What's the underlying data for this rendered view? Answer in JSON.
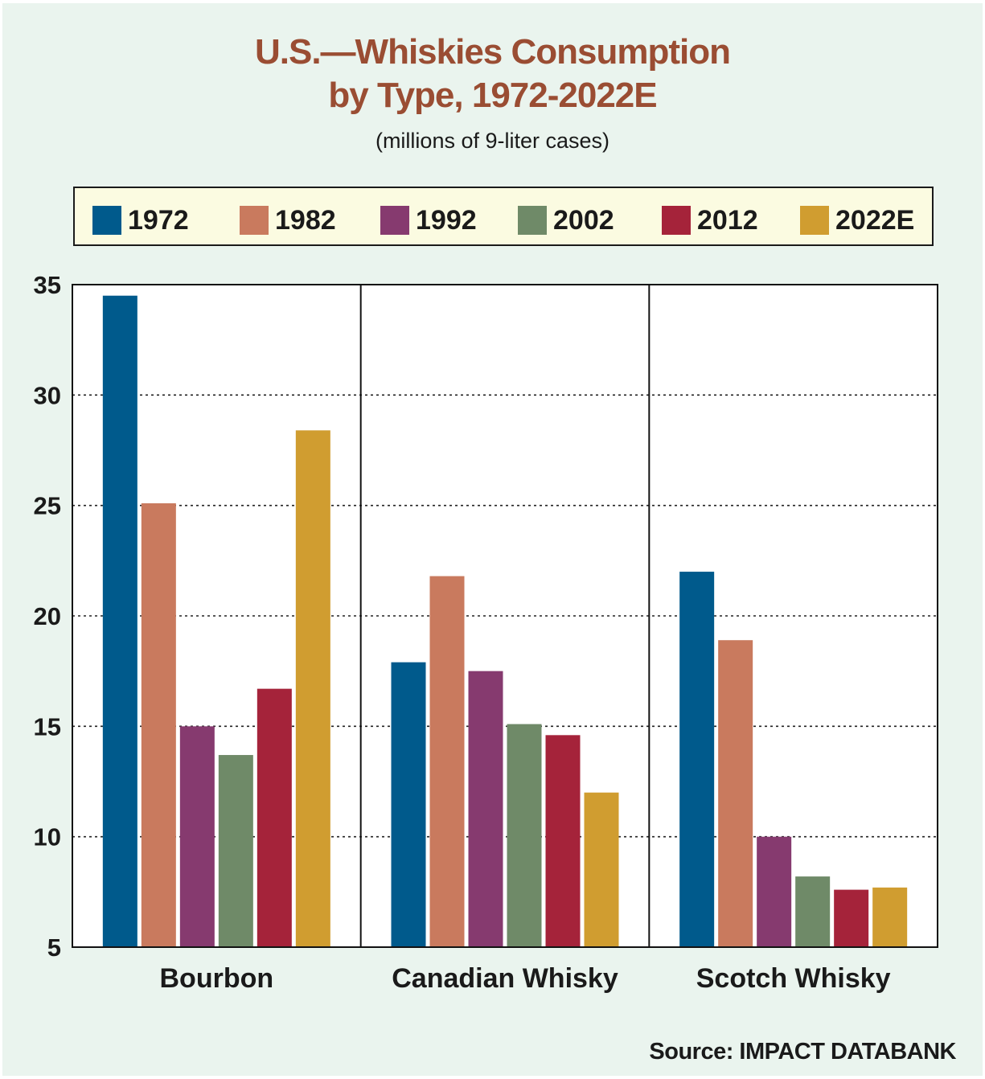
{
  "title_line1": "U.S.—Whiskies Consumption",
  "title_line2": "by Type, 1972-2022E",
  "subtitle": "(millions of 9-liter cases)",
  "source": "Source: IMPACT DATABANK",
  "chart_data": {
    "type": "bar",
    "categories": [
      "Bourbon",
      "Canadian Whisky",
      "Scotch Whisky"
    ],
    "series": [
      {
        "name": "1972",
        "color": "#005a8c",
        "values": [
          34.5,
          17.9,
          22.0
        ]
      },
      {
        "name": "1982",
        "color": "#c97a5e",
        "values": [
          25.1,
          21.8,
          18.9
        ]
      },
      {
        "name": "1992",
        "color": "#863a6f",
        "values": [
          15.0,
          17.5,
          10.0
        ]
      },
      {
        "name": "2002",
        "color": "#6f8a68",
        "values": [
          13.7,
          15.1,
          8.2
        ]
      },
      {
        "name": "2012",
        "color": "#a5233a",
        "values": [
          16.7,
          14.6,
          7.6
        ]
      },
      {
        "name": "2022E",
        "color": "#d09d30",
        "values": [
          28.4,
          12.0,
          7.7
        ]
      }
    ],
    "ylim": [
      5,
      35
    ],
    "yticks": [
      5,
      10,
      15,
      20,
      25,
      30,
      35
    ],
    "grid": "horizontal dotted",
    "legend": "top"
  }
}
